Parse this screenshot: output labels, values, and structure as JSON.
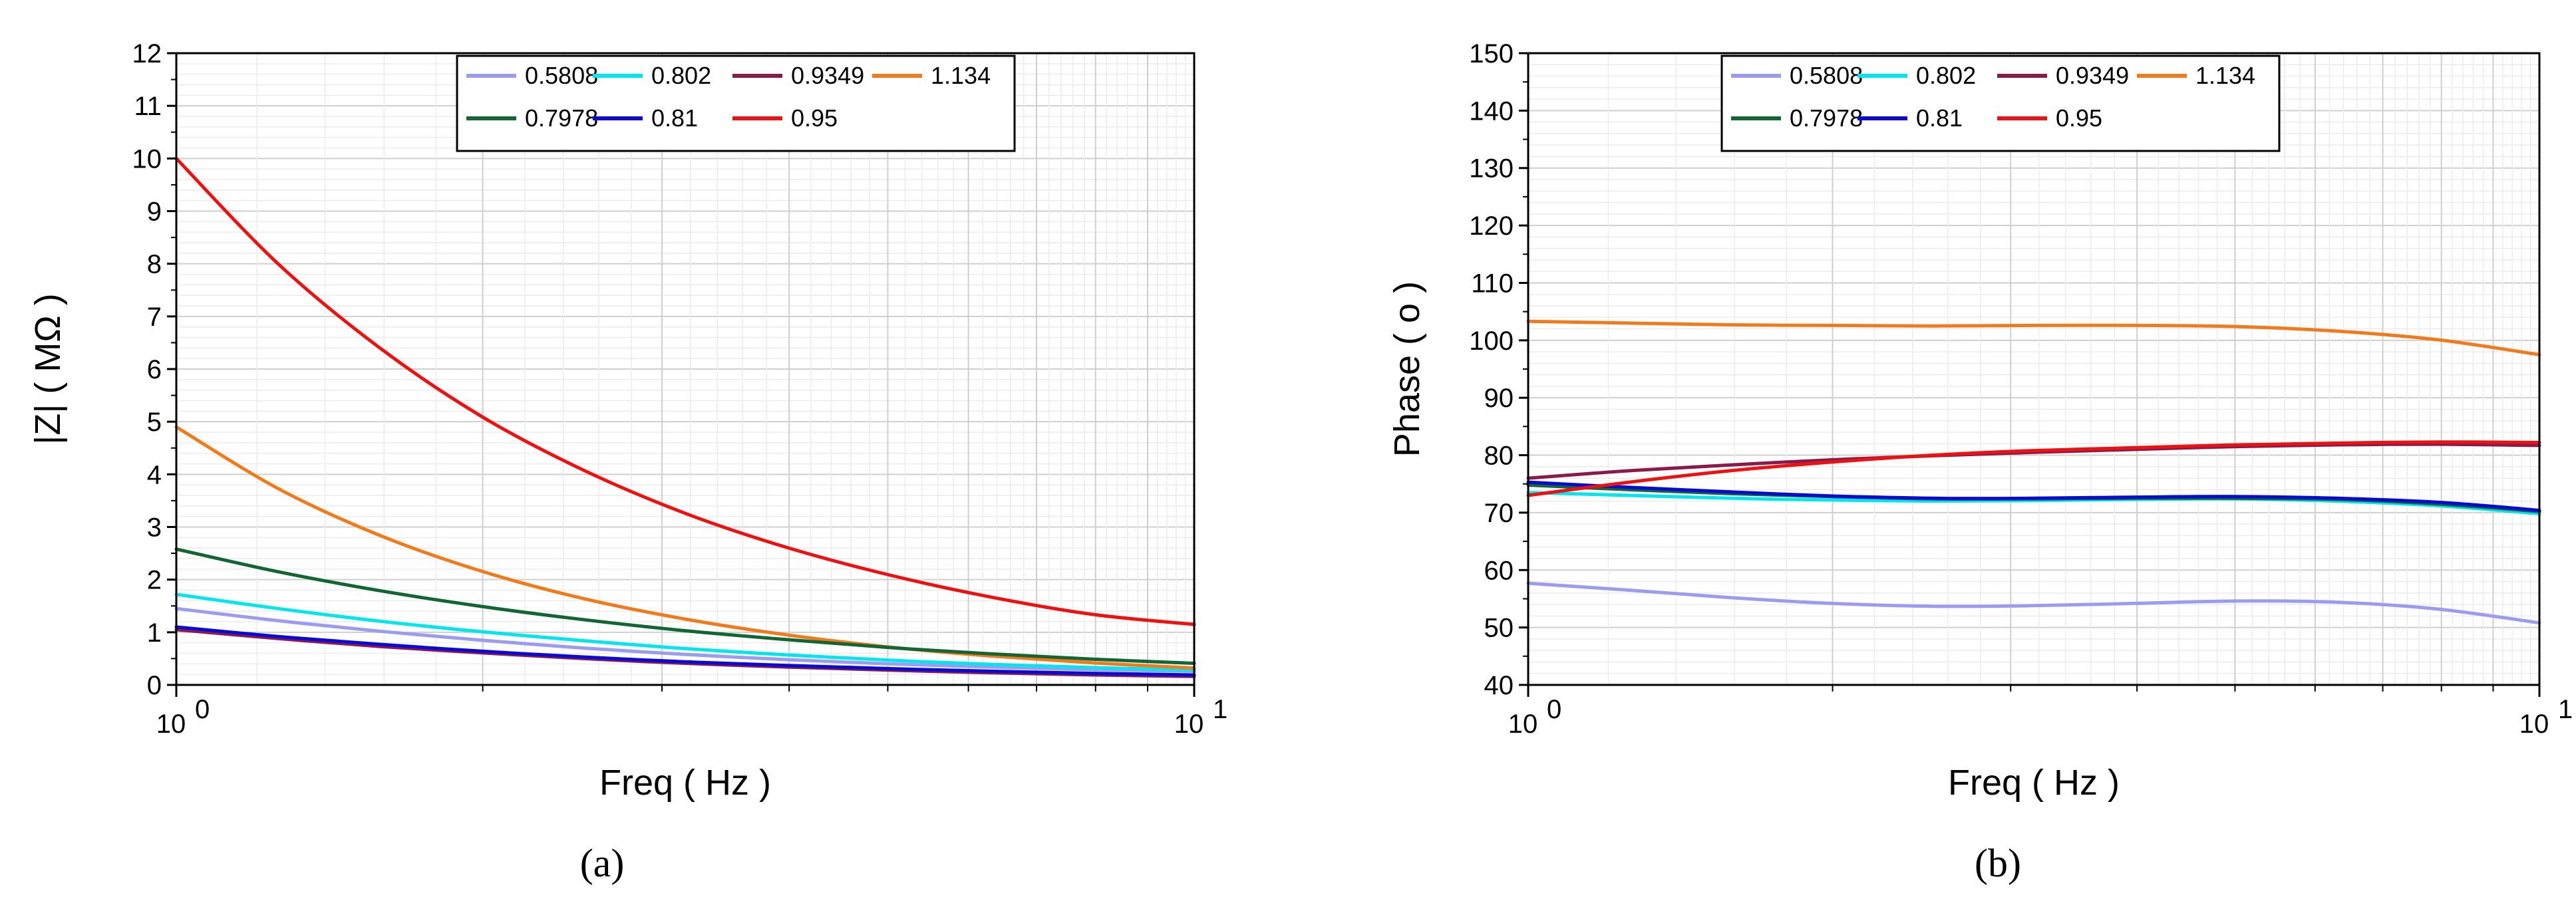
{
  "chart_data": [
    {
      "type": "line",
      "panel_label": "(a)",
      "xlabel": "Freq ( Hz )",
      "ylabel": "|Z| ( MΩ )",
      "xscale": "log",
      "xlim": [
        1,
        10
      ],
      "ylim": [
        0,
        12
      ],
      "xticks": [
        {
          "base": "10",
          "exp": "0"
        },
        {
          "base": "10",
          "exp": "1"
        }
      ],
      "yticks": [
        "0",
        "1",
        "2",
        "3",
        "4",
        "5",
        "6",
        "7",
        "8",
        "9",
        "10",
        "11",
        "12"
      ],
      "grid": true,
      "legend_placement": "top-center",
      "x": [
        1,
        1.259,
        1.585,
        1.995,
        2.512,
        3.162,
        3.981,
        5.012,
        6.31,
        7.943,
        10
      ],
      "series": [
        {
          "name": "0.5808",
          "color": "#9b9bf0",
          "values": [
            1.45,
            1.22,
            1.02,
            0.85,
            0.7,
            0.58,
            0.48,
            0.4,
            0.34,
            0.29,
            0.26
          ]
        },
        {
          "name": "0.802",
          "color": "#00e5ee",
          "values": [
            1.72,
            1.45,
            1.21,
            1.01,
            0.84,
            0.69,
            0.57,
            0.47,
            0.39,
            0.33,
            0.28
          ]
        },
        {
          "name": "0.9349",
          "color": "#8b1a4a",
          "values": [
            1.05,
            0.88,
            0.73,
            0.61,
            0.5,
            0.41,
            0.34,
            0.28,
            0.23,
            0.19,
            0.16
          ]
        },
        {
          "name": "1.134",
          "color": "#f07a1c",
          "values": [
            4.9,
            3.73,
            2.84,
            2.16,
            1.64,
            1.25,
            0.95,
            0.72,
            0.55,
            0.42,
            0.32
          ]
        },
        {
          "name": "0.7978",
          "color": "#116633",
          "values": [
            2.58,
            2.15,
            1.79,
            1.49,
            1.24,
            1.03,
            0.86,
            0.71,
            0.59,
            0.49,
            0.41
          ]
        },
        {
          "name": "0.81",
          "color": "#0a0ad8",
          "values": [
            1.1,
            0.92,
            0.77,
            0.64,
            0.53,
            0.44,
            0.37,
            0.31,
            0.26,
            0.22,
            0.19
          ]
        },
        {
          "name": "0.95",
          "color": "#ee1111",
          "values": [
            10.0,
            8.0,
            6.4,
            5.1,
            4.08,
            3.26,
            2.61,
            2.09,
            1.67,
            1.34,
            1.15
          ]
        }
      ]
    },
    {
      "type": "line",
      "panel_label": "(b)",
      "xlabel": "Freq ( Hz )",
      "ylabel": "Phase ( o )",
      "xscale": "log",
      "xlim": [
        1,
        10
      ],
      "ylim": [
        40,
        150
      ],
      "xticks": [
        {
          "base": "10",
          "exp": "0"
        },
        {
          "base": "10",
          "exp": "1"
        }
      ],
      "yticks": [
        "40",
        "50",
        "60",
        "70",
        "80",
        "90",
        "100",
        "110",
        "120",
        "130",
        "140",
        "150"
      ],
      "grid": true,
      "legend_placement": "top-center",
      "x": [
        1,
        1.259,
        1.585,
        1.995,
        2.512,
        3.162,
        3.981,
        5.012,
        6.31,
        7.943,
        10
      ],
      "series": [
        {
          "name": "0.5808",
          "color": "#9b9bf0",
          "values": [
            57.7,
            56.5,
            55.2,
            54.2,
            53.7,
            53.8,
            54.2,
            54.6,
            54.4,
            53.2,
            50.8
          ]
        },
        {
          "name": "0.802",
          "color": "#00e5ee",
          "values": [
            73.5,
            73.0,
            72.5,
            72.2,
            72.0,
            72.1,
            72.3,
            72.4,
            72.0,
            71.2,
            69.8
          ]
        },
        {
          "name": "0.9349",
          "color": "#8b1a4a",
          "values": [
            76.0,
            77.3,
            78.3,
            79.2,
            79.9,
            80.5,
            81.0,
            81.5,
            81.8,
            81.9,
            81.7
          ]
        },
        {
          "name": "1.134",
          "color": "#f07a1c",
          "values": [
            103.3,
            103.0,
            102.7,
            102.6,
            102.5,
            102.6,
            102.6,
            102.4,
            101.6,
            100.1,
            97.5
          ]
        },
        {
          "name": "0.7978",
          "color": "#116633",
          "values": [
            74.8,
            74.0,
            73.3,
            72.8,
            72.4,
            72.4,
            72.5,
            72.5,
            72.3,
            71.5,
            70.2
          ]
        },
        {
          "name": "0.81",
          "color": "#0a0ad8",
          "values": [
            75.3,
            74.4,
            73.6,
            72.9,
            72.5,
            72.5,
            72.7,
            72.8,
            72.5,
            71.8,
            70.4
          ]
        },
        {
          "name": "0.95",
          "color": "#ee1111",
          "values": [
            73.0,
            75.3,
            77.3,
            78.8,
            80.0,
            80.8,
            81.3,
            81.8,
            82.1,
            82.3,
            82.2
          ]
        }
      ]
    }
  ]
}
